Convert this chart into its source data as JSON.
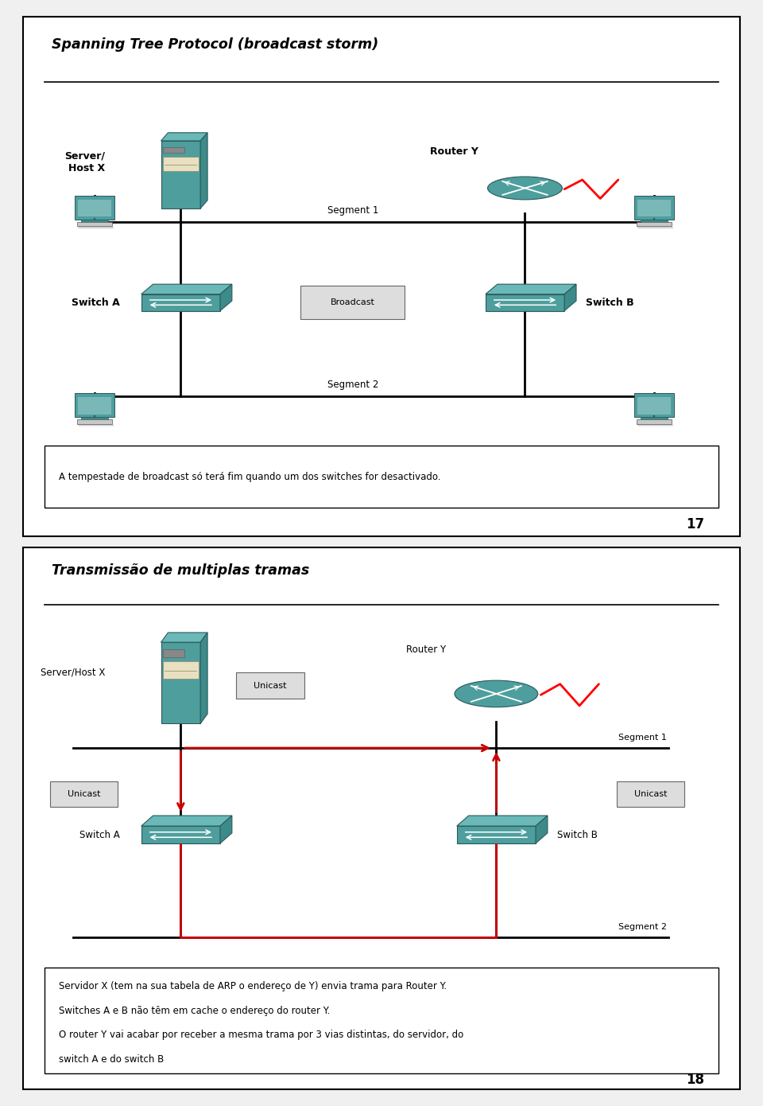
{
  "panel1": {
    "title": "Spanning Tree Protocol (broadcast storm)",
    "page_num": "17",
    "note": "A tempestade de broadcast só terá fim quando um dos switches for desactivado.",
    "labels": {
      "server_host": "Server/\nHost X",
      "router_y": "Router Y",
      "switch_a": "Switch A",
      "switch_b": "Switch B",
      "segment1": "Segment 1",
      "segment2": "Segment 2",
      "broadcast": "Broadcast"
    }
  },
  "panel2": {
    "title": "Transmissão de multiplas tramas",
    "page_num": "18",
    "note_lines": [
      "Servidor X (tem na sua tabela de ARP o endereço de Y) envia trama para Router Y.",
      "Switches A e B não têm em cache o endereço do router Y.",
      "O router Y vai acabar por receber a mesma trama por 3 vias distintas, do servidor, do",
      "switch A e do switch B"
    ],
    "labels": {
      "server_host": "Server/Host X",
      "router_y": "Router Y",
      "switch_a": "Switch A",
      "switch_b": "Switch B",
      "segment1": "Segment 1",
      "segment2": "Segment 2",
      "unicast1": "Unicast",
      "unicast2": "Unicast",
      "unicast3": "Unicast"
    }
  },
  "bg_color": "#f0f0f0",
  "panel_bg": "#ffffff",
  "border_color": "#000000",
  "teal_dark": "#3d8a8a",
  "teal_mid": "#4e9e9e",
  "teal_light": "#6ab8b8",
  "cream": "#e8e0c0",
  "gray_light": "#c8c8c8",
  "red_color": "#cc0000"
}
